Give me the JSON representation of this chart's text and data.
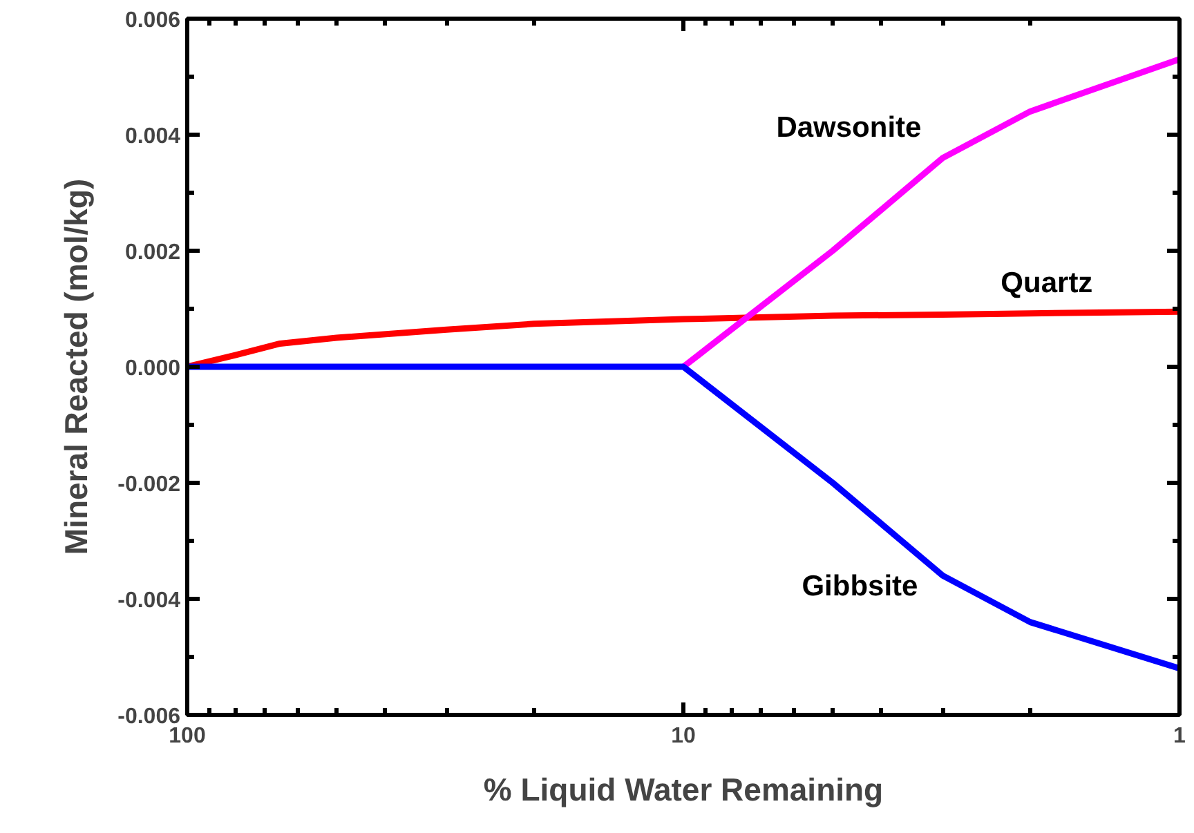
{
  "chart_data": {
    "type": "line",
    "xlabel": "% Liquid Water Remaining",
    "ylabel": "Mineral Reacted (mol/kg)",
    "log": "x",
    "grid": false,
    "legend": false,
    "marker": "none",
    "line_style": "solid",
    "xlim": [
      100,
      1
    ],
    "ylim": [
      -0.006,
      0.006
    ],
    "xticks": [
      100,
      10,
      1,
      {
        "value": 90,
        "label": null
      },
      {
        "value": 80,
        "label": null
      },
      {
        "value": 70,
        "label": null
      },
      {
        "value": 60,
        "label": null
      },
      {
        "value": 50,
        "label": null
      },
      {
        "value": 40,
        "label": null
      },
      {
        "value": 30,
        "label": null
      },
      {
        "value": 20,
        "label": null
      },
      {
        "value": 9,
        "label": null
      },
      {
        "value": 8,
        "label": null
      },
      {
        "value": 7,
        "label": null
      },
      {
        "value": 6,
        "label": null
      },
      {
        "value": 5,
        "label": null
      },
      {
        "value": 4,
        "label": null
      },
      {
        "value": 3,
        "label": null
      },
      {
        "value": 2,
        "label": null
      }
    ],
    "yticks": [
      {
        "value": -0.006,
        "label": "-0.006"
      },
      {
        "value": -0.004,
        "label": "-0.004"
      },
      {
        "value": -0.002,
        "label": "-0.002"
      },
      {
        "value": 0,
        "label": "0.000"
      },
      {
        "value": 0.002,
        "label": "0.002"
      },
      {
        "value": 0.004,
        "label": "0.004"
      },
      {
        "value": 0.006,
        "label": "0.006"
      },
      {
        "value": -0.005,
        "label": null
      },
      {
        "value": -0.003,
        "label": null
      },
      {
        "value": -0.001,
        "label": null
      },
      {
        "value": 0.001,
        "label": null
      },
      {
        "value": 0.003,
        "label": null
      },
      {
        "value": 0.005,
        "label": null
      }
    ],
    "series": [
      {
        "name": "Quartz",
        "color": "#ff0000",
        "x": [
          100,
          80,
          65,
          50,
          30,
          20,
          10,
          5,
          3,
          2,
          1
        ],
        "values": [
          0,
          0.0002,
          0.0004,
          0.0005,
          0.00064,
          0.00074,
          0.00082,
          0.00088,
          0.0009,
          0.00092,
          0.00095
        ]
      },
      {
        "name": "Dawsonite",
        "color": "#ff00ff",
        "x": [
          10,
          5,
          3,
          2,
          1
        ],
        "values": [
          0,
          0.002,
          0.0036,
          0.0044,
          0.0053
        ]
      },
      {
        "name": "Gibbsite",
        "color": "#0000ff",
        "x": [
          100,
          10,
          5,
          3,
          2,
          1
        ],
        "values": [
          0,
          0,
          -0.002,
          -0.0036,
          -0.0044,
          -0.0052
        ]
      }
    ]
  }
}
